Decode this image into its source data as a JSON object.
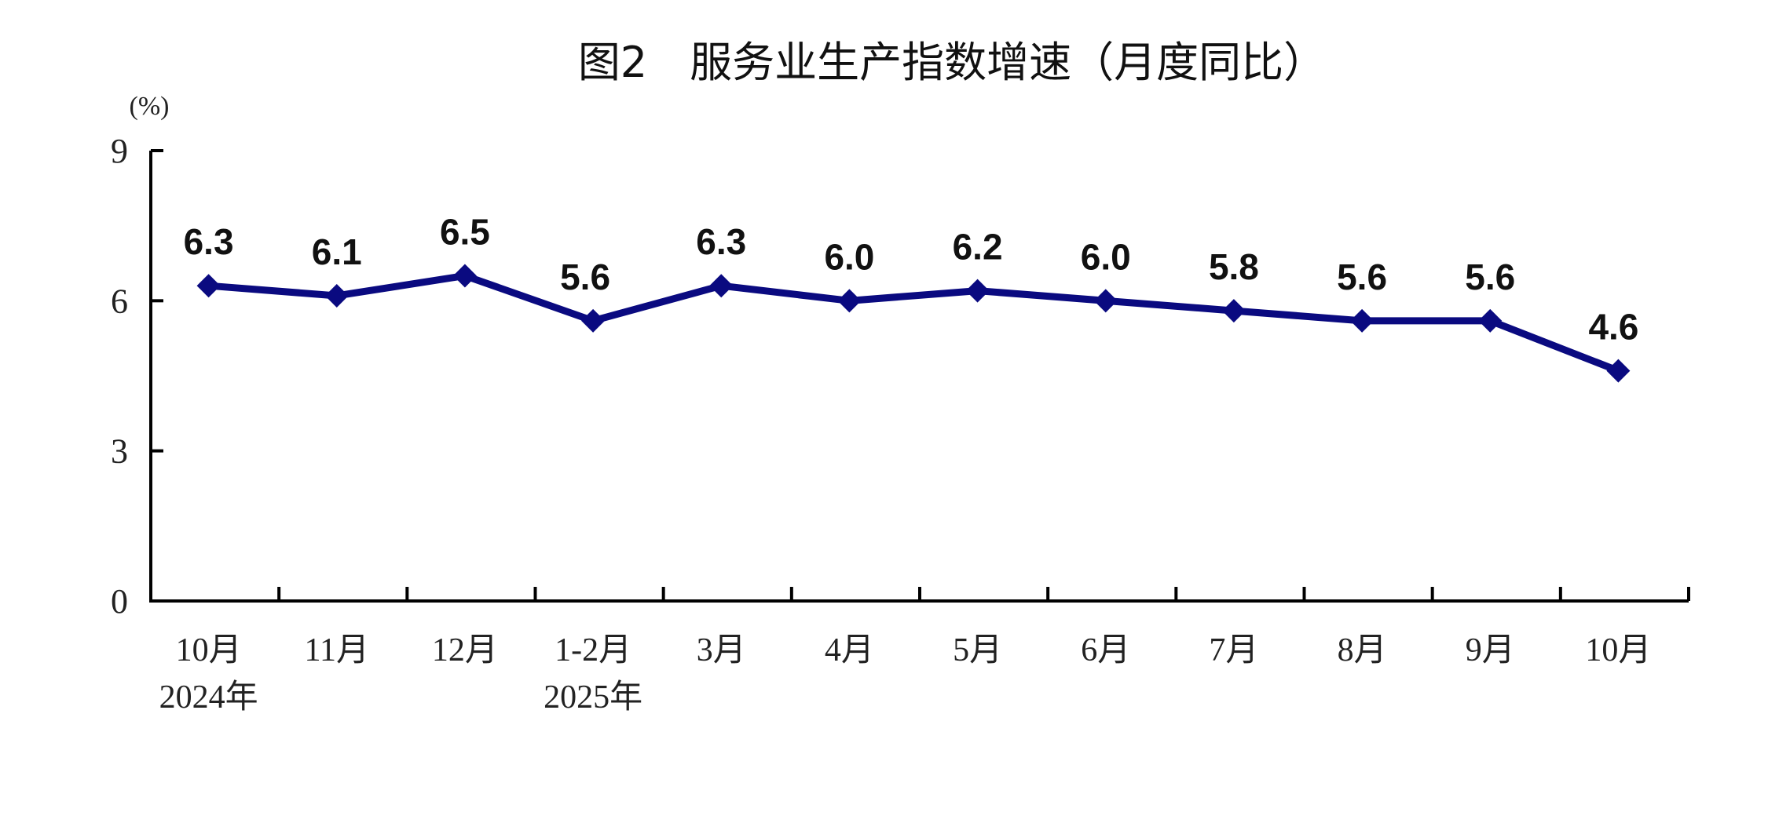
{
  "chart_data": {
    "type": "line",
    "title": "图2　服务业生产指数增速（月度同比）",
    "ylabel": "(%)",
    "xlabel": "",
    "categories": [
      "10月",
      "11月",
      "12月",
      "1-2月",
      "3月",
      "4月",
      "5月",
      "6月",
      "7月",
      "8月",
      "9月",
      "10月"
    ],
    "year_labels": [
      {
        "index": 0,
        "label": "2024年"
      },
      {
        "index": 3,
        "label": "2025年"
      }
    ],
    "series": [
      {
        "values": [
          6.3,
          6.1,
          6.5,
          5.6,
          6.3,
          6.0,
          6.2,
          6.0,
          5.8,
          5.6,
          5.6,
          4.6
        ]
      }
    ],
    "value_labels": [
      "6.3",
      "6.1",
      "6.5",
      "5.6",
      "6.3",
      "6.0",
      "6.2",
      "6.0",
      "5.8",
      "5.6",
      "5.6",
      "4.6"
    ],
    "ylim": [
      0,
      9
    ],
    "yticks": [
      "0",
      "3",
      "6",
      "9"
    ],
    "grid": false,
    "legend": "none",
    "line_color": "#0a0a80",
    "marker": "diamond"
  }
}
